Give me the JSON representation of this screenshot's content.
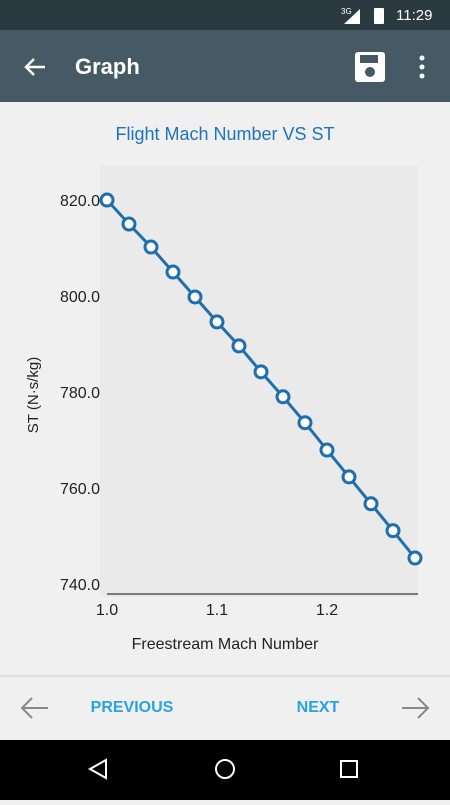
{
  "status_bar": {
    "network": "3G",
    "time": "11:29"
  },
  "toolbar": {
    "title": "Graph"
  },
  "chart_data": {
    "type": "line",
    "title": "Flight Mach Number VS ST",
    "x_label": "Freestream Mach Number",
    "y_label": "ST (N·s/kg)",
    "x": [
      1.0,
      1.02,
      1.04,
      1.06,
      1.08,
      1.1,
      1.12,
      1.14,
      1.16,
      1.18,
      1.2,
      1.22,
      1.24,
      1.26,
      1.28
    ],
    "series": [
      {
        "name": "ST",
        "color": "#1f6fb0",
        "values": [
          820.4,
          815.4,
          810.6,
          805.4,
          800.2,
          795.0,
          790.0,
          784.6,
          779.4,
          774.0,
          768.3,
          762.7,
          757.1,
          751.5,
          745.8
        ]
      }
    ],
    "xlim": [
      1.0,
      1.28
    ],
    "ylim": [
      738.3,
      827.7
    ],
    "xticks": [
      {
        "value": 1.0,
        "label": "1.0"
      },
      1.1,
      1.2
    ],
    "yticks": [
      {
        "value": 740,
        "label": "740.0"
      },
      {
        "value": 760,
        "label": "760.0"
      },
      {
        "value": 780,
        "label": "780.0"
      },
      {
        "value": 800,
        "label": "800.0"
      },
      {
        "value": 820,
        "label": "820.0"
      }
    ]
  },
  "footer": {
    "previous": "PREVIOUS",
    "next": "NEXT"
  }
}
